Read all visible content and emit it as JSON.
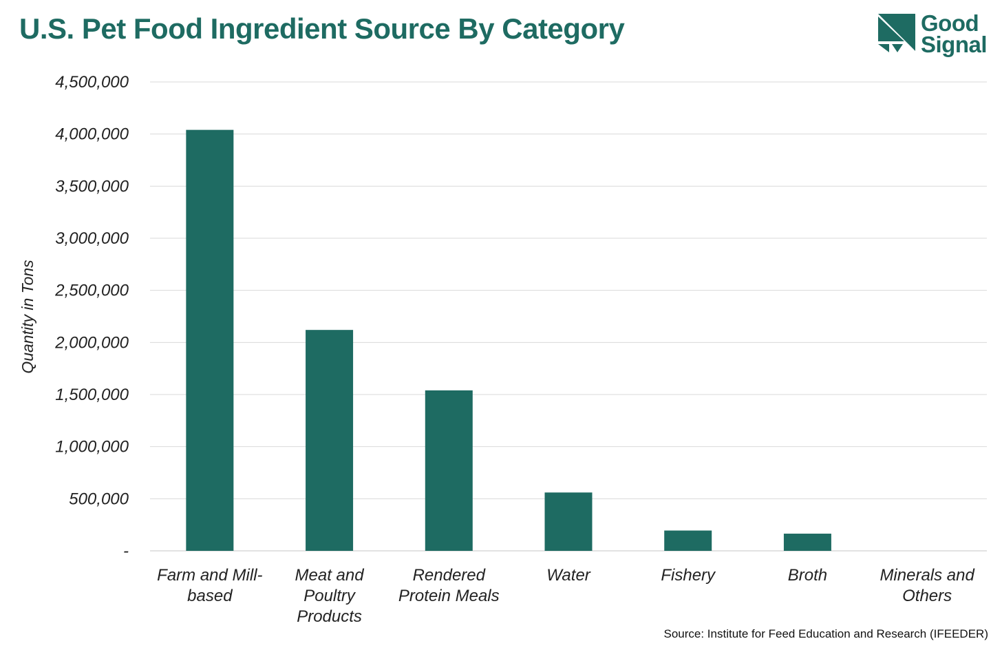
{
  "title": "U.S. Pet Food Ingredient Source By Category",
  "logo": {
    "line1": "Good",
    "line2": "Signal"
  },
  "source": "Source: Institute for Feed Education and Research (IFEEDER)",
  "colors": {
    "bar": "#1e6b62",
    "title": "#1e6b62",
    "grid": "#d9d9d9"
  },
  "chart_data": {
    "type": "bar",
    "title": "U.S. Pet Food Ingredient Source By Category",
    "xlabel": "",
    "ylabel": "Quantity in Tons",
    "ylim": [
      0,
      4500000
    ],
    "grid": true,
    "y_ticks": [
      {
        "value": 0,
        "label": "-"
      },
      {
        "value": 500000,
        "label": "500,000"
      },
      {
        "value": 1000000,
        "label": "1,000,000"
      },
      {
        "value": 1500000,
        "label": "1,500,000"
      },
      {
        "value": 2000000,
        "label": "2,000,000"
      },
      {
        "value": 2500000,
        "label": "2,500,000"
      },
      {
        "value": 3000000,
        "label": "3,000,000"
      },
      {
        "value": 3500000,
        "label": "3,500,000"
      },
      {
        "value": 4000000,
        "label": "4,000,000"
      },
      {
        "value": 4500000,
        "label": "4,500,000"
      }
    ],
    "categories": [
      [
        "Farm and Mill-",
        "based"
      ],
      [
        "Meat and",
        "Poultry",
        "Products"
      ],
      [
        "Rendered",
        "Protein Meals"
      ],
      [
        "Water"
      ],
      [
        "Fishery"
      ],
      [
        "Broth"
      ],
      [
        "Minerals and",
        "Others"
      ]
    ],
    "values": [
      4040000,
      2120000,
      1540000,
      560000,
      195000,
      165000,
      0
    ]
  }
}
